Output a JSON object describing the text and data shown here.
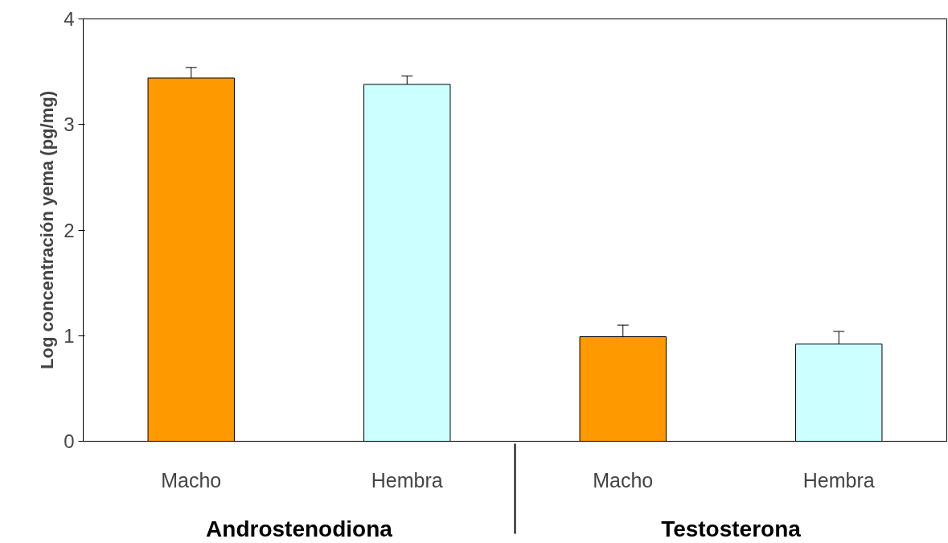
{
  "chart_data": {
    "type": "bar",
    "ylabel": "Log concentración yema (pg/mg)",
    "categories": [
      "Macho",
      "Hembra",
      "Macho",
      "Hembra"
    ],
    "annotations": [
      "Androstenodiona",
      "Testosterona"
    ],
    "values": [
      3.44,
      3.38,
      0.99,
      0.92
    ],
    "colors": [
      "#ff9900",
      "#ccffff",
      "#ff9900",
      "#ccffff"
    ],
    "errors": [
      [
        3.44,
        3.54
      ],
      [
        3.38,
        3.46
      ],
      [
        0.99,
        1.1
      ],
      [
        0.92,
        1.04
      ]
    ],
    "ylim": [
      0,
      4
    ],
    "yticks": [
      0,
      1,
      2,
      3,
      4
    ],
    "grid": false
  }
}
